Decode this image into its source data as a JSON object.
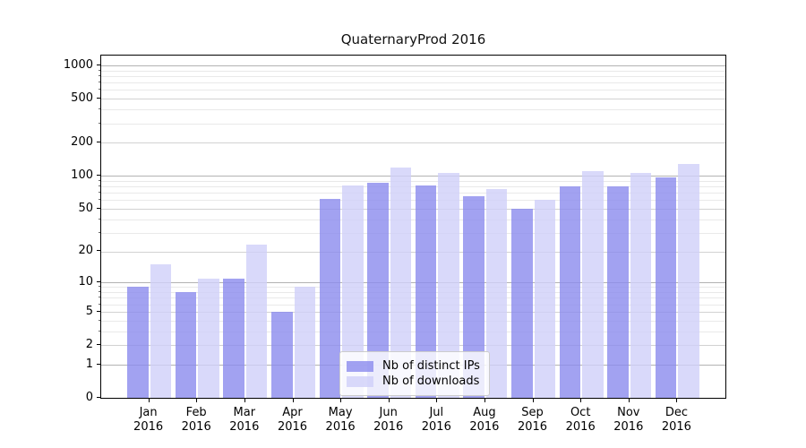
{
  "title": "QuaternaryProd 2016",
  "chart_data": {
    "type": "bar",
    "title": "QuaternaryProd 2016",
    "categories": [
      "Jan",
      "Feb",
      "Mar",
      "Apr",
      "May",
      "Jun",
      "Jul",
      "Aug",
      "Sep",
      "Oct",
      "Nov",
      "Dec"
    ],
    "x_sub_label": "2016",
    "series": [
      {
        "name": "Nb of distinct IPs",
        "color": "#8b8bee",
        "values": [
          9,
          8,
          11,
          5,
          61,
          87,
          82,
          65,
          50,
          80,
          80,
          96
        ]
      },
      {
        "name": "Nb of downloads",
        "color": "#d0d0f9",
        "values": [
          15,
          11,
          23,
          9,
          82,
          118,
          107,
          76,
          60,
          110,
          107,
          128
        ]
      }
    ],
    "yscale": "log1p",
    "ylim": [
      0,
      1227
    ],
    "ytick_values": [
      0,
      1,
      2,
      5,
      10,
      20,
      50,
      100,
      200,
      500,
      1000
    ],
    "ytick_labels": [
      "0",
      "1",
      "2",
      "5",
      "10",
      "20",
      "50",
      "100",
      "200",
      "500",
      "1000"
    ],
    "grid": {
      "major_values": [
        1,
        10,
        100,
        1000
      ],
      "mid_values": [
        2,
        5,
        20,
        50,
        200,
        500
      ],
      "minor_values": [
        3,
        4,
        6,
        7,
        8,
        9,
        30,
        40,
        60,
        70,
        80,
        90,
        300,
        400,
        600,
        700,
        800,
        900
      ],
      "major_color": "#b3b3b3",
      "mid_color": "#d2d2d2",
      "minor_color": "#e9e9e9"
    },
    "legend_position": "lower center",
    "background_color": "#ffffff",
    "spine_color": "#000000"
  }
}
